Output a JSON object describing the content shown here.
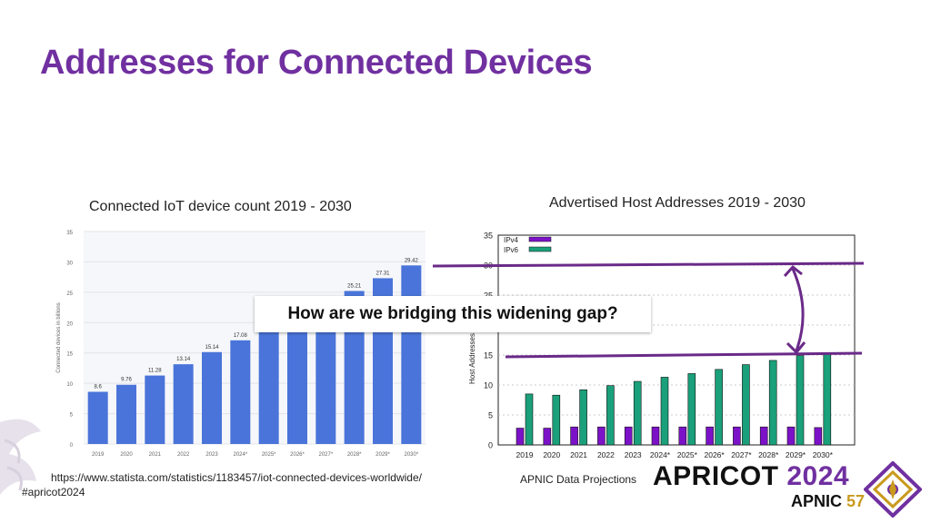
{
  "slide": {
    "title": "Addresses for Connected Devices",
    "left_caption": "Connected IoT device count 2019 - 2030",
    "right_caption": "Advertised Host Addresses 2019 - 2030",
    "callout": "How are we bridging this widening gap?",
    "source_url": "https://www.statista.com/statistics/1183457/iot-connected-devices-worldwide/",
    "hashtag": "#apricot2024",
    "right_source": "APNIC Data Projections",
    "logo": {
      "word": "APRICOT",
      "year": "2024",
      "org": "APNIC",
      "number": "57"
    },
    "colors": {
      "title": "#7030a0",
      "bar_iot": "#4a74d9",
      "ipv4": "#7c12c8",
      "ipv6": "#1aa07a",
      "annotation": "#6a2a88",
      "logo_gold": "#c99a1e"
    }
  },
  "chart_data": [
    {
      "type": "bar",
      "categories": [
        "2019",
        "2020",
        "2021",
        "2022",
        "2023",
        "2024*",
        "2025*",
        "2026*",
        "2027*",
        "2028*",
        "2029*",
        "2030*"
      ],
      "values": [
        8.6,
        9.76,
        11.28,
        13.14,
        15.14,
        17.08,
        null,
        null,
        null,
        25.21,
        27.31,
        29.42
      ],
      "ylabel": "Connected devices in billions",
      "ylim": [
        0,
        35
      ],
      "yticks": [
        0,
        5,
        10,
        15,
        20,
        25,
        30,
        35
      ],
      "grid": true
    },
    {
      "type": "bar",
      "categories": [
        "2019",
        "2020",
        "2021",
        "2022",
        "2023",
        "2024*",
        "2025*",
        "2026*",
        "2027*",
        "2028*",
        "2029*",
        "2030*"
      ],
      "series": [
        {
          "name": "IPv4",
          "values": [
            2.8,
            2.8,
            3.0,
            3.0,
            3.0,
            3.0,
            3.0,
            3.0,
            3.0,
            3.0,
            3.0,
            2.9
          ]
        },
        {
          "name": "IPv6",
          "values": [
            8.5,
            8.3,
            9.2,
            9.9,
            10.6,
            11.3,
            11.9,
            12.6,
            13.4,
            14.1,
            14.9,
            15.4
          ]
        }
      ],
      "ylabel": "Host Addresses",
      "ylim": [
        0,
        35
      ],
      "yticks": [
        0,
        5,
        10,
        15,
        20,
        25,
        30,
        35
      ],
      "legend": "top-left",
      "grid": true
    }
  ]
}
